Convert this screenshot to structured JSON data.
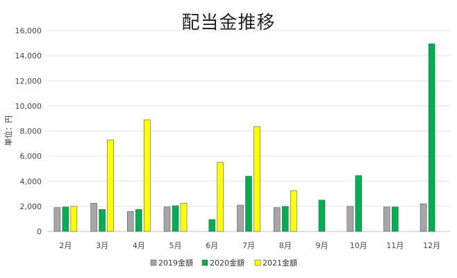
{
  "chart_data": {
    "type": "bar",
    "title": "配当金推移",
    "ylabel": "単位：円",
    "xlabel": "",
    "categories": [
      "2月",
      "3月",
      "4月",
      "5月",
      "6月",
      "7月",
      "8月",
      "9月",
      "10月",
      "11月",
      "12月"
    ],
    "ylim": [
      0,
      16000
    ],
    "yticks": [
      "0",
      "2,000",
      "4,000",
      "6,000",
      "8,000",
      "10,000",
      "12,000",
      "14,000",
      "16,000"
    ],
    "grid": true,
    "legend_position": "bottom",
    "series": [
      {
        "name": "2019金額",
        "color": "#a6a6a6",
        "values": [
          1900,
          2250,
          1600,
          1950,
          null,
          2100,
          1900,
          null,
          2000,
          1950,
          2200
        ]
      },
      {
        "name": "2020金額",
        "color": "#00b050",
        "values": [
          1950,
          1750,
          1750,
          2050,
          950,
          4400,
          2000,
          2500,
          4450,
          1950,
          14950
        ]
      },
      {
        "name": "2021金額",
        "color": "#ffff00",
        "values": [
          2000,
          7300,
          8900,
          2250,
          5500,
          8350,
          3250,
          null,
          null,
          null,
          null
        ]
      }
    ]
  }
}
